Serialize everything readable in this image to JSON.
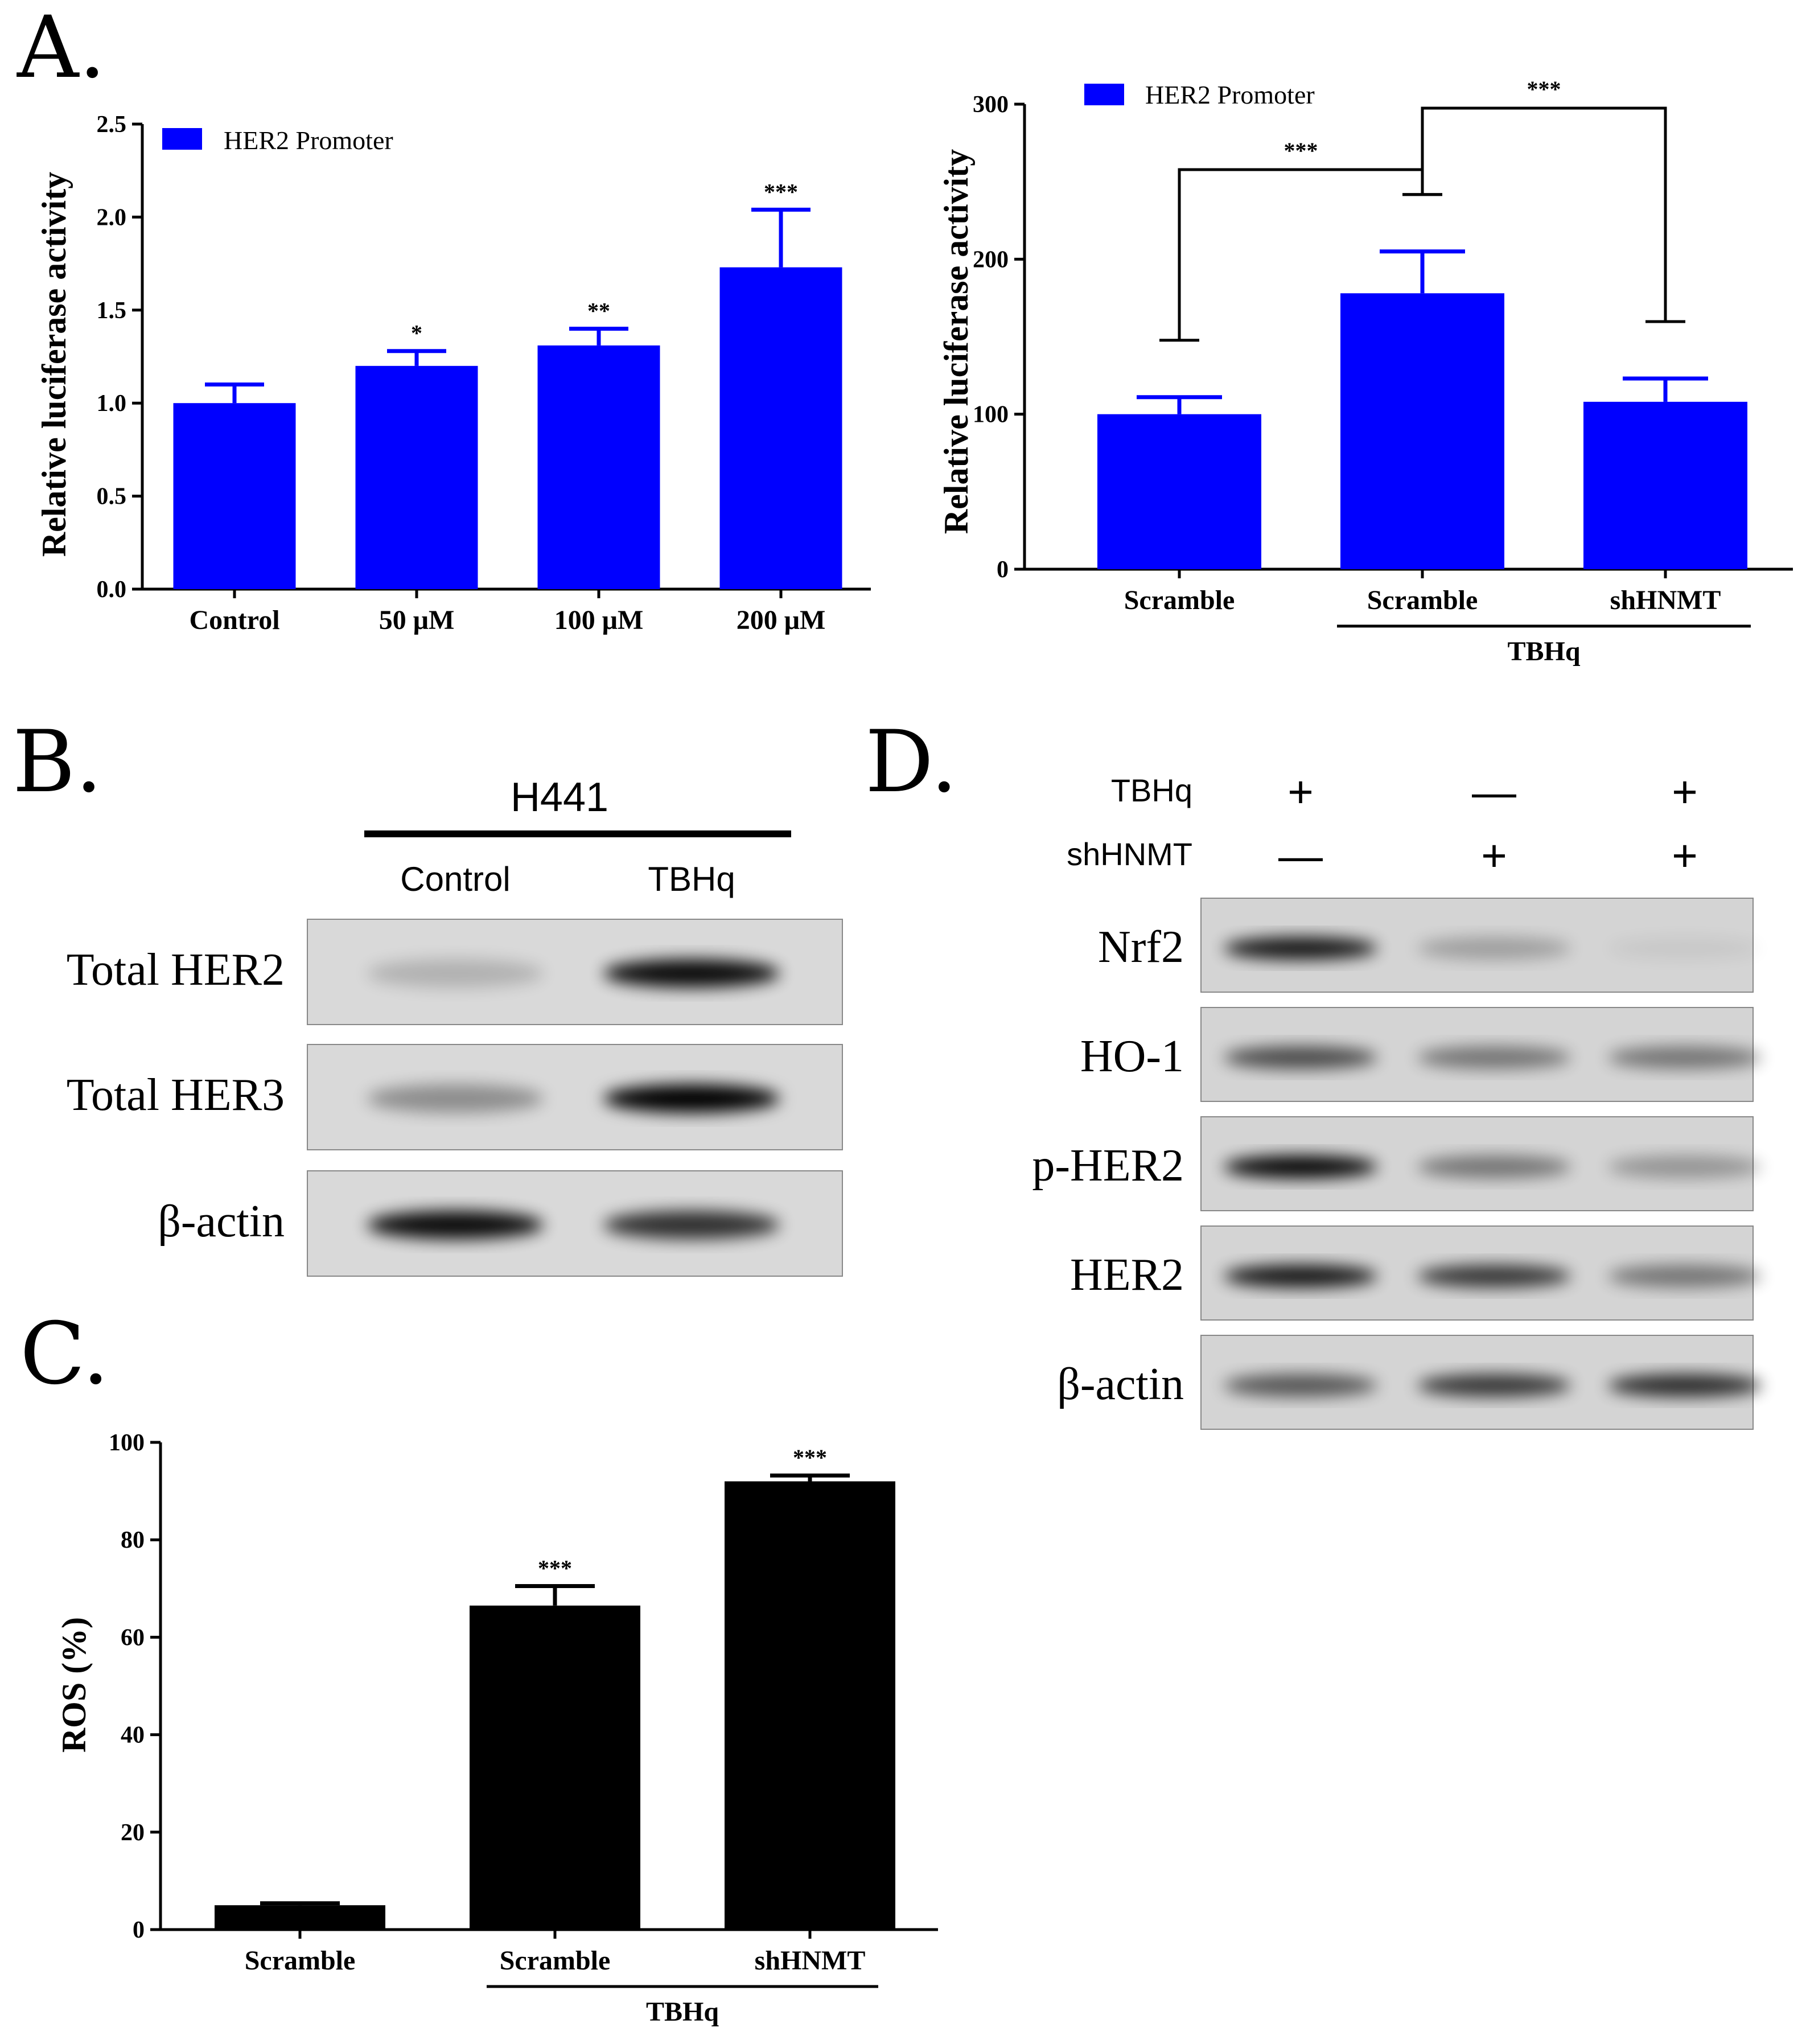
{
  "panels": {
    "A": "A.",
    "B": "B.",
    "C": "C.",
    "D": "D."
  },
  "colors": {
    "blue": "#0000ff",
    "black": "#000000"
  },
  "chart_data": [
    {
      "id": "A1",
      "type": "bar",
      "title": "",
      "legend": "HER2 Promoter",
      "legend_position": "top-left",
      "color": "#0000ff",
      "xlabel": "",
      "ylabel": "Relative luciferase activity",
      "categories": [
        "Control",
        "50 μM",
        "100 μM",
        "200 μM"
      ],
      "values": [
        1.0,
        1.2,
        1.31,
        1.73
      ],
      "errors": [
        0.1,
        0.08,
        0.09,
        0.31
      ],
      "significance": [
        "",
        "*",
        "**",
        "***"
      ],
      "ylim": [
        0,
        2.5
      ],
      "yticks": [
        "0.0",
        "0.5",
        "1.0",
        "1.5",
        "2.0",
        "2.5"
      ]
    },
    {
      "id": "A2",
      "type": "bar",
      "title": "",
      "legend": "HER2 Promoter",
      "legend_position": "top-left",
      "color": "#0000ff",
      "xlabel": "",
      "ylabel": "Relative luciferase activity",
      "categories": [
        "Scramble",
        "Scramble",
        "shHNMT"
      ],
      "group_label": "TBHq",
      "values": [
        100,
        178,
        108
      ],
      "errors": [
        11,
        27,
        15
      ],
      "brackets": [
        {
          "from": 0,
          "to": 1,
          "label": "***"
        },
        {
          "from": 1,
          "to": 2,
          "label": "***"
        }
      ],
      "ylim": [
        0,
        300
      ],
      "yticks": [
        "0",
        "100",
        "200",
        "300"
      ]
    },
    {
      "id": "C",
      "type": "bar",
      "title": "",
      "color": "#000000",
      "xlabel": "",
      "ylabel": "ROS (%)",
      "categories": [
        "Scramble",
        "Scramble",
        "shHNMT"
      ],
      "group_label": "TBHq",
      "values": [
        5,
        66.5,
        92
      ],
      "errors": [
        0.4,
        4,
        1.2
      ],
      "significance": [
        "",
        "***",
        "***"
      ],
      "ylim": [
        0,
        100
      ],
      "yticks": [
        "0",
        "20",
        "40",
        "60",
        "80",
        "100"
      ]
    }
  ],
  "blotB": {
    "cell_line": "H441",
    "columns": [
      "Control",
      "TBHq"
    ],
    "rows": [
      {
        "label": "Total HER2",
        "intensities": [
          0.18,
          0.95
        ]
      },
      {
        "label": "Total HER3",
        "intensities": [
          0.35,
          1.0
        ]
      },
      {
        "label": "β-actin",
        "intensities": [
          0.95,
          0.78
        ]
      }
    ]
  },
  "blotD": {
    "conditions": [
      {
        "label": "TBHq",
        "signs": [
          "+",
          "—",
          "+"
        ]
      },
      {
        "label": "shHNMT",
        "signs": [
          "—",
          "+",
          "+"
        ]
      }
    ],
    "rows": [
      {
        "label": "Nrf2",
        "intensities": [
          0.9,
          0.25,
          0.05
        ]
      },
      {
        "label": "HO-1",
        "intensities": [
          0.65,
          0.45,
          0.45
        ]
      },
      {
        "label": "p-HER2",
        "intensities": [
          0.98,
          0.45,
          0.3
        ]
      },
      {
        "label": "HER2",
        "intensities": [
          0.9,
          0.75,
          0.45
        ]
      },
      {
        "label": "β-actin",
        "intensities": [
          0.6,
          0.75,
          0.8
        ]
      }
    ]
  }
}
